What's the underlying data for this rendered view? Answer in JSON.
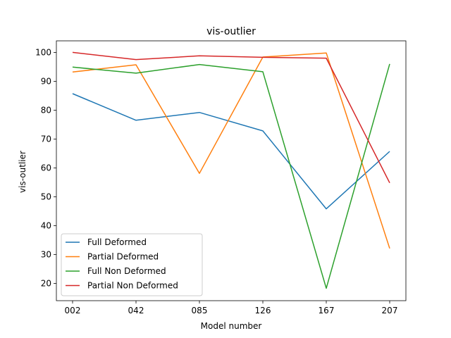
{
  "chart_data": {
    "type": "line",
    "title": "vis-outlier",
    "xlabel": "Model number",
    "ylabel": "vis-outlier",
    "categories": [
      "002",
      "042",
      "085",
      "126",
      "167",
      "207"
    ],
    "ylim": [
      14,
      104
    ],
    "yticks": [
      20,
      30,
      40,
      50,
      60,
      70,
      80,
      90,
      100
    ],
    "grid": false,
    "legend_position": "lower-left",
    "series": [
      {
        "name": "Full Deformed",
        "color": "#1f77b4",
        "values": [
          85.7,
          76.5,
          79.2,
          72.8,
          45.8,
          65.7
        ]
      },
      {
        "name": "Partial Deformed",
        "color": "#ff7f0e",
        "values": [
          93.2,
          95.7,
          58.1,
          98.4,
          99.8,
          32.1
        ]
      },
      {
        "name": "Full Non Deformed",
        "color": "#2ca02c",
        "values": [
          94.9,
          92.8,
          95.8,
          93.3,
          18.3,
          96.0
        ]
      },
      {
        "name": "Partial Non Deformed",
        "color": "#d62728",
        "values": [
          100.0,
          97.5,
          98.8,
          98.3,
          98.0,
          54.8
        ]
      }
    ]
  }
}
